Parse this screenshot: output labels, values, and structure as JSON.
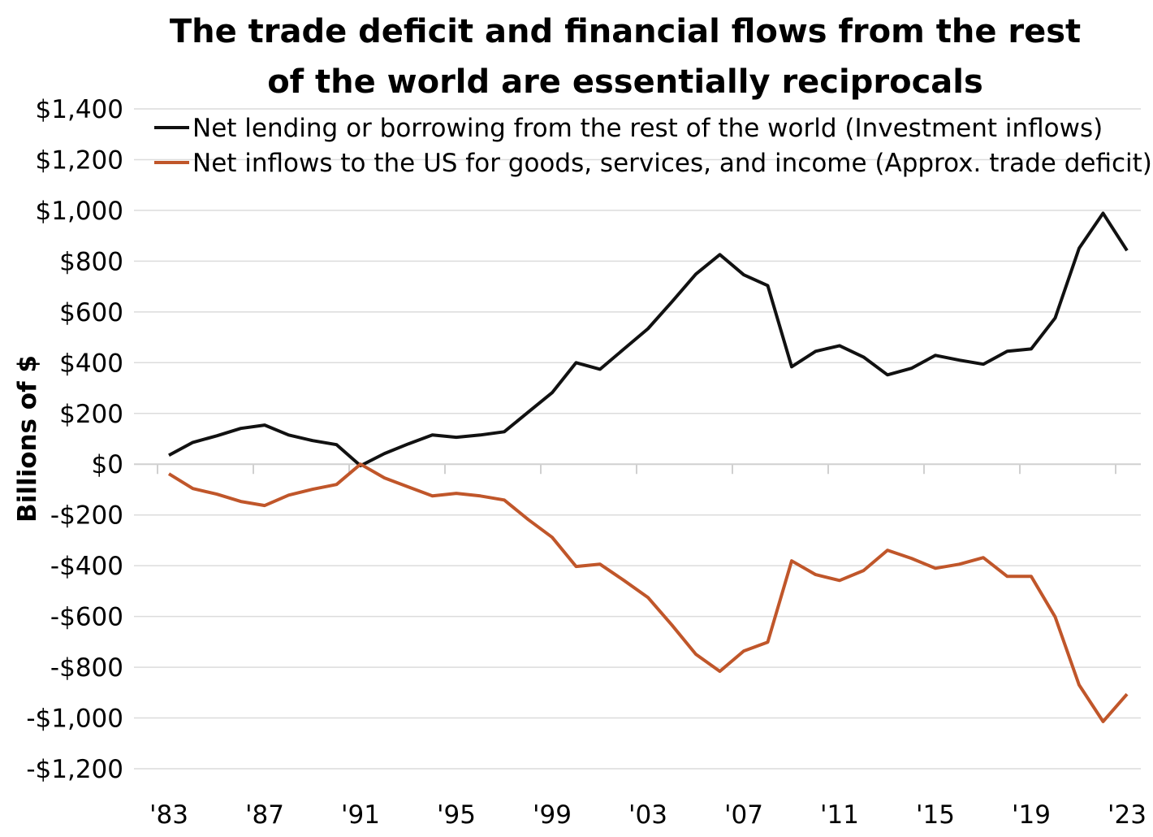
{
  "chart_data": {
    "type": "line",
    "title_lines": [
      "The trade deficit and financial flows from the rest",
      "of the world are essentially reciprocals"
    ],
    "xlabel": "",
    "ylabel": "Billions of $",
    "ylim": [
      -1200,
      1400
    ],
    "yticks": [
      1400,
      1200,
      1000,
      800,
      600,
      400,
      200,
      0,
      -200,
      -400,
      -600,
      -800,
      -1000,
      -1200
    ],
    "ytick_labels": [
      "$1,400",
      "$1,200",
      "$1,000",
      "$800",
      "$600",
      "$400",
      "$200",
      "$0",
      "-$200",
      "-$400",
      "-$600",
      "-$800",
      "-$1,000",
      "-$1,200"
    ],
    "xticks": [
      1983,
      1987,
      1991,
      1995,
      1999,
      2003,
      2007,
      2011,
      2015,
      2019,
      2023
    ],
    "xtick_labels": [
      "'83",
      "'87",
      "'91",
      "'95",
      "'99",
      "'03",
      "'07",
      "'11",
      "'15",
      "'19",
      "'23"
    ],
    "grid": "horizontal",
    "legend_position": "top",
    "x": [
      1983,
      1984,
      1985,
      1986,
      1987,
      1988,
      1989,
      1990,
      1991,
      1992,
      1993,
      1994,
      1995,
      1996,
      1997,
      1998,
      1999,
      2000,
      2001,
      2002,
      2003,
      2004,
      2005,
      2006,
      2007,
      2008,
      2009,
      2010,
      2011,
      2012,
      2013,
      2014,
      2015,
      2016,
      2017,
      2018,
      2019,
      2020,
      2021,
      2022,
      2023
    ],
    "series": [
      {
        "name": "Net lending or borrowing from the rest of the world (Investment inflows)",
        "color": "#111111",
        "values": [
          35,
          86,
          112,
          141,
          154,
          115,
          93,
          77,
          -6,
          42,
          80,
          115,
          106,
          115,
          128,
          205,
          282,
          400,
          374,
          454,
          534,
          640,
          749,
          826,
          746,
          704,
          384,
          445,
          467,
          422,
          352,
          378,
          429,
          410,
          394,
          445,
          454,
          576,
          851,
          989,
          842
        ]
      },
      {
        "name": "Net inflows to the US for goods, services, and income (Approx. trade deficit)",
        "color": "#C0562A",
        "values": [
          -38,
          -96,
          -118,
          -147,
          -163,
          -122,
          -99,
          -80,
          0,
          -54,
          -90,
          -125,
          -115,
          -125,
          -141,
          -218,
          -288,
          -403,
          -394,
          -458,
          -525,
          -634,
          -749,
          -816,
          -736,
          -701,
          -381,
          -435,
          -458,
          -419,
          -339,
          -371,
          -410,
          -394,
          -368,
          -442,
          -442,
          -602,
          -870,
          -1014,
          -906
        ]
      }
    ]
  }
}
